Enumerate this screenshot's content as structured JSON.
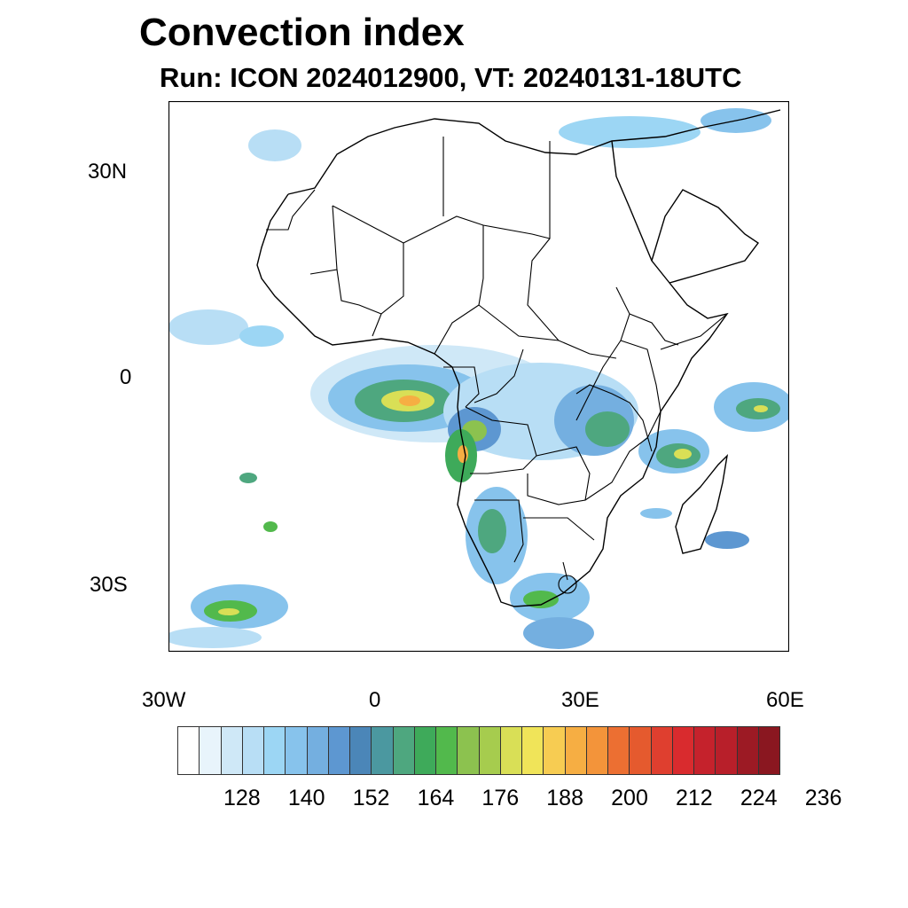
{
  "title": "Convection index",
  "subtitle": "Run: ICON 2024012900,  VT: 20240131-18UTC",
  "axes": {
    "lat_labels": [
      "30N",
      "0",
      "30S"
    ],
    "lon_labels": [
      "30W",
      "0",
      "30E",
      "60E"
    ]
  },
  "colorbar": {
    "colors": [
      "#ffffff",
      "#e8f4fb",
      "#cfe8f7",
      "#b8def5",
      "#9cd6f4",
      "#87c3ec",
      "#74afe0",
      "#5d97d1",
      "#4b86b8",
      "#4b98a0",
      "#4ea77f",
      "#3eaa5a",
      "#52b94c",
      "#8cc24f",
      "#a6cc4e",
      "#d9df56",
      "#f0e459",
      "#f7cc52",
      "#f6ae43",
      "#f3943a",
      "#ec6f32",
      "#e55a2e",
      "#df3f2f",
      "#d92b2e",
      "#c5222c",
      "#b81f2a",
      "#9c1a24",
      "#8a1720"
    ],
    "tick_labels": [
      "128",
      "140",
      "152",
      "164",
      "176",
      "188",
      "200",
      "212",
      "224",
      "236"
    ]
  }
}
